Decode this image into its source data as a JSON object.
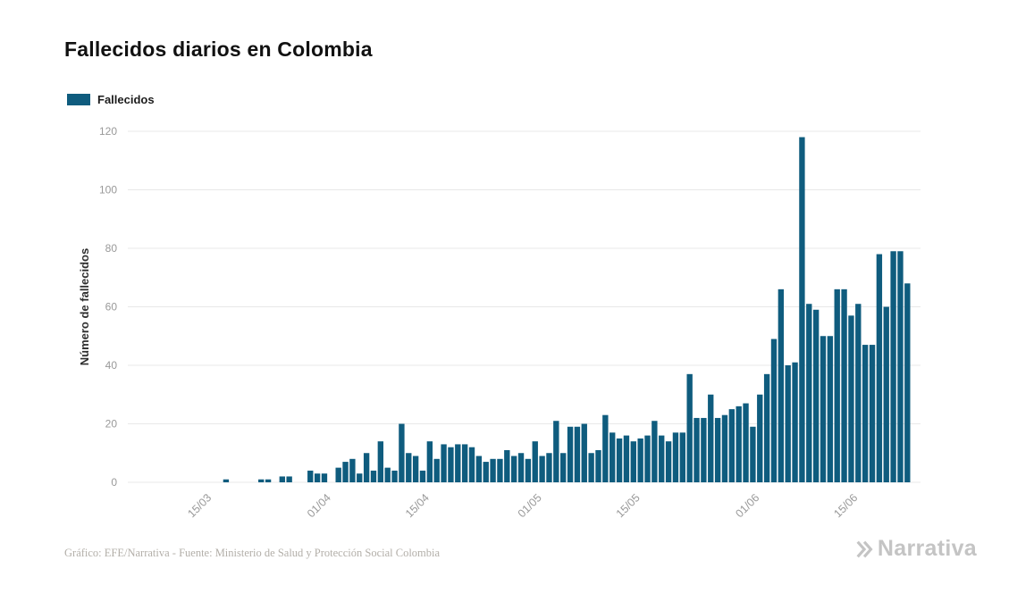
{
  "page": {
    "title": "Fallecidos diarios en Colombia",
    "footer_credit": "Gráfico: EFE/Narrativa - Fuente: Ministerio de Salud y Protección Social Colombia",
    "brand_name": "Narrativa"
  },
  "colors": {
    "bar": "#0f5c7e",
    "grid": "#e8e8e8",
    "axis_text": "#999999",
    "ylabel_text": "#2e2e2e",
    "title_text": "#111111",
    "footer_text": "#b3afa9",
    "brand": "#c4c4c4"
  },
  "chart_data": {
    "type": "bar",
    "title": "Fallecidos diarios en Colombia",
    "xlabel": "",
    "ylabel": "Número de fallecidos",
    "ylim": [
      0,
      120
    ],
    "yticks": [
      0,
      20,
      40,
      60,
      80,
      100,
      120
    ],
    "xticks_shown": [
      "15/03",
      "01/04",
      "15/04",
      "01/05",
      "15/05",
      "01/06",
      "15/06"
    ],
    "grid": "horizontal",
    "legend": {
      "label": "Fallecidos",
      "position": "top-left"
    },
    "bar_color": "#0f5c7e",
    "categories": [
      "08/03",
      "09/03",
      "10/03",
      "11/03",
      "12/03",
      "13/03",
      "14/03",
      "15/03",
      "16/03",
      "17/03",
      "18/03",
      "19/03",
      "20/03",
      "21/03",
      "22/03",
      "23/03",
      "24/03",
      "25/03",
      "26/03",
      "27/03",
      "28/03",
      "29/03",
      "30/03",
      "31/03",
      "01/04",
      "02/04",
      "03/04",
      "04/04",
      "05/04",
      "06/04",
      "07/04",
      "08/04",
      "09/04",
      "10/04",
      "11/04",
      "12/04",
      "13/04",
      "14/04",
      "15/04",
      "16/04",
      "17/04",
      "18/04",
      "19/04",
      "20/04",
      "21/04",
      "22/04",
      "23/04",
      "24/04",
      "25/04",
      "26/04",
      "27/04",
      "28/04",
      "29/04",
      "30/04",
      "01/05",
      "02/05",
      "03/05",
      "04/05",
      "05/05",
      "06/05",
      "07/05",
      "08/05",
      "09/05",
      "10/05",
      "11/05",
      "12/05",
      "13/05",
      "14/05",
      "15/05",
      "16/05",
      "17/05",
      "18/05",
      "19/05",
      "20/05",
      "21/05",
      "22/05",
      "23/05",
      "24/05",
      "25/05",
      "26/05",
      "27/05",
      "28/05",
      "29/05",
      "30/05",
      "31/05",
      "01/06",
      "02/06",
      "03/06",
      "04/06",
      "05/06",
      "06/06",
      "07/06",
      "08/06",
      "09/06",
      "10/06",
      "11/06",
      "12/06",
      "13/06",
      "14/06",
      "15/06",
      "16/06",
      "17/06",
      "18/06",
      "19/06",
      "20/06",
      "21/06",
      "22/06"
    ],
    "values": [
      0,
      0,
      0,
      0,
      0,
      0,
      0,
      0,
      0,
      1,
      0,
      0,
      0,
      0,
      1,
      1,
      0,
      2,
      2,
      0,
      0,
      4,
      3,
      3,
      0,
      5,
      7,
      8,
      3,
      10,
      4,
      14,
      5,
      4,
      20,
      10,
      9,
      4,
      14,
      8,
      13,
      12,
      13,
      13,
      12,
      9,
      7,
      8,
      8,
      11,
      9,
      10,
      8,
      14,
      9,
      10,
      21,
      10,
      19,
      19,
      20,
      10,
      11,
      23,
      17,
      15,
      16,
      14,
      15,
      16,
      21,
      16,
      14,
      17,
      17,
      37,
      22,
      22,
      30,
      22,
      23,
      25,
      26,
      27,
      19,
      30,
      37,
      49,
      66,
      40,
      41,
      118,
      61,
      59,
      50,
      50,
      66,
      66,
      57,
      61,
      47,
      47,
      78,
      60,
      79,
      79,
      68
    ]
  }
}
